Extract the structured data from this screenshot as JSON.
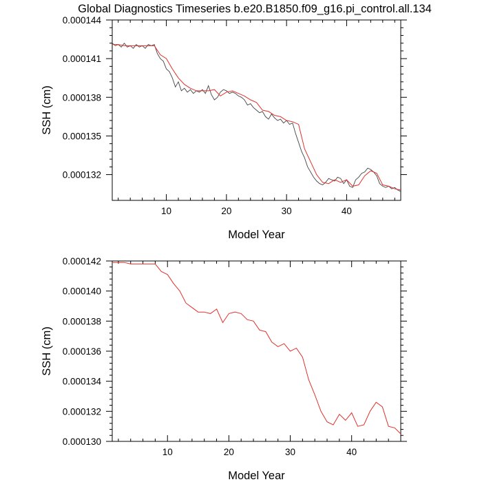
{
  "title": "Global Diagnostics Timeseries b.e20.B1850.f09_g16.pi_control.all.134",
  "chart_data": [
    {
      "type": "line",
      "xlabel": "Model Year",
      "ylabel": "SSH (cm)",
      "xlim": [
        1,
        49
      ],
      "ylim": [
        0.00013,
        0.000144
      ],
      "xticks": [
        10,
        20,
        30,
        40
      ],
      "xtick_labels": [
        "10",
        "20",
        "30",
        "40"
      ],
      "yticks": [
        0.000132,
        0.000135,
        0.000138,
        0.000141,
        0.000144
      ],
      "ytick_labels": [
        "0.000132",
        "0.000135",
        "0.000138",
        "0.000141",
        "0.000144"
      ],
      "series": [
        {
          "color": "#444444",
          "note": "monthly",
          "x": [
            1.0,
            1.5,
            2.0,
            2.5,
            3.0,
            3.5,
            4.0,
            4.5,
            5.0,
            5.5,
            6.0,
            6.5,
            7.0,
            7.5,
            8.0,
            8.5,
            9.0,
            9.5,
            10.0,
            10.5,
            11.0,
            11.5,
            12.0,
            12.5,
            13.0,
            13.5,
            14.0,
            14.5,
            15.0,
            15.5,
            16.0,
            16.5,
            17.0,
            17.5,
            18.0,
            18.5,
            19.0,
            19.5,
            20.0,
            20.5,
            21.0,
            21.5,
            22.0,
            22.5,
            23.0,
            23.5,
            24.0,
            24.5,
            25.0,
            25.5,
            26.0,
            26.5,
            27.0,
            27.5,
            28.0,
            28.5,
            29.0,
            29.5,
            30.0,
            30.5,
            31.0,
            31.5,
            32.0,
            32.5,
            33.0,
            33.5,
            34.0,
            34.5,
            35.0,
            35.5,
            36.0,
            36.5,
            37.0,
            37.5,
            38.0,
            38.5,
            39.0,
            39.5,
            40.0,
            40.5,
            41.0,
            41.5,
            42.0,
            42.5,
            43.0,
            43.5,
            44.0,
            44.5,
            45.0,
            45.5,
            46.0,
            46.5,
            47.0,
            47.5,
            48.0,
            48.5,
            49.0
          ],
          "y": [
            0.0001422,
            0.000142,
            0.0001421,
            0.0001419,
            0.0001422,
            0.0001419,
            0.000142,
            0.0001418,
            0.0001421,
            0.0001419,
            0.000142,
            0.0001418,
            0.0001421,
            0.000142,
            0.0001421,
            0.0001414,
            0.000141,
            0.0001408,
            0.0001402,
            0.00014,
            0.0001395,
            0.0001388,
            0.0001392,
            0.0001385,
            0.0001387,
            0.0001384,
            0.0001386,
            0.0001383,
            0.0001385,
            0.0001384,
            0.0001386,
            0.0001383,
            0.0001389,
            0.0001382,
            0.0001378,
            0.000138,
            0.0001384,
            0.0001386,
            0.0001385,
            0.0001383,
            0.0001384,
            0.0001383,
            0.0001381,
            0.000138,
            0.0001378,
            0.0001374,
            0.0001375,
            0.0001372,
            0.000137,
            0.0001368,
            0.0001369,
            0.0001365,
            0.0001363,
            0.0001367,
            0.0001364,
            0.0001362,
            0.0001363,
            0.000136,
            0.0001362,
            0.0001359,
            0.000136,
            0.0001352,
            0.0001345,
            0.0001338,
            0.0001333,
            0.0001326,
            0.0001322,
            0.0001318,
            0.0001315,
            0.0001313,
            0.0001312,
            0.0001314,
            0.0001317,
            0.0001316,
            0.0001315,
            0.0001318,
            0.0001317,
            0.0001313,
            0.0001316,
            0.0001311,
            0.000131,
            0.0001316,
            0.0001318,
            0.0001321,
            0.0001322,
            0.0001325,
            0.0001324,
            0.0001322,
            0.0001319,
            0.0001313,
            0.0001311,
            0.000131,
            0.0001311,
            0.0001309,
            0.000131,
            0.0001308,
            0.0001307
          ]
        },
        {
          "color": "#e0302a",
          "note": "annual",
          "x": [
            1,
            2,
            3,
            4,
            5,
            6,
            7,
            8,
            9,
            10,
            11,
            12,
            13,
            14,
            15,
            16,
            17,
            18,
            19,
            20,
            21,
            22,
            23,
            24,
            25,
            26,
            27,
            28,
            29,
            30,
            31,
            32,
            33,
            34,
            35,
            36,
            37,
            38,
            39,
            40,
            41,
            42,
            43,
            44,
            45,
            46,
            47,
            48,
            49
          ],
          "y": [
            0.0001421,
            0.0001421,
            0.000142,
            0.000142,
            0.000142,
            0.000142,
            0.000142,
            0.000142,
            0.0001413,
            0.000141,
            0.0001402,
            0.0001395,
            0.000139,
            0.0001387,
            0.0001385,
            0.0001385,
            0.0001385,
            0.0001386,
            0.0001381,
            0.0001384,
            0.0001385,
            0.0001383,
            0.0001381,
            0.0001378,
            0.0001376,
            0.000137,
            0.0001369,
            0.0001366,
            0.0001365,
            0.0001362,
            0.0001361,
            0.0001359,
            0.000134,
            0.000133,
            0.000132,
            0.0001314,
            0.0001313,
            0.0001316,
            0.0001314,
            0.0001316,
            0.0001311,
            0.0001312,
            0.0001319,
            0.0001323,
            0.0001321,
            0.0001312,
            0.0001311,
            0.0001309,
            0.0001308
          ]
        }
      ]
    },
    {
      "type": "line",
      "xlabel": "Model Year",
      "ylabel": "SSH (cm)",
      "xlim": [
        1,
        48
      ],
      "ylim": [
        0.00013,
        0.000142
      ],
      "xticks": [
        10,
        20,
        30,
        40
      ],
      "xtick_labels": [
        "10",
        "20",
        "30",
        "40"
      ],
      "yticks": [
        0.00013,
        0.000132,
        0.000134,
        0.000136,
        0.000138,
        0.00014,
        0.000142
      ],
      "ytick_labels": [
        "0.000130",
        "0.000132",
        "0.000134",
        "0.000136",
        "0.000138",
        "0.000140",
        "0.000142"
      ],
      "series": [
        {
          "color": "#e0302a",
          "x": [
            1,
            2,
            3,
            4,
            5,
            6,
            7,
            8,
            9,
            10,
            11,
            12,
            13,
            14,
            15,
            16,
            17,
            18,
            19,
            20,
            21,
            22,
            23,
            24,
            25,
            26,
            27,
            28,
            29,
            30,
            31,
            32,
            33,
            34,
            35,
            36,
            37,
            38,
            39,
            40,
            41,
            42,
            43,
            44,
            45,
            46,
            47,
            48
          ],
          "y": [
            0.0001419,
            0.0001419,
            0.0001419,
            0.0001418,
            0.0001418,
            0.0001418,
            0.0001418,
            0.0001418,
            0.0001413,
            0.0001411,
            0.0001405,
            0.00014,
            0.0001392,
            0.0001389,
            0.0001386,
            0.0001386,
            0.0001385,
            0.0001388,
            0.0001379,
            0.0001385,
            0.0001386,
            0.0001385,
            0.0001381,
            0.000138,
            0.0001374,
            0.0001373,
            0.0001366,
            0.0001363,
            0.0001365,
            0.000136,
            0.0001362,
            0.0001356,
            0.0001341,
            0.0001331,
            0.000132,
            0.0001313,
            0.0001311,
            0.0001318,
            0.0001314,
            0.0001319,
            0.000131,
            0.0001311,
            0.000132,
            0.0001326,
            0.0001323,
            0.000131,
            0.0001309,
            0.0001305
          ]
        }
      ]
    }
  ]
}
